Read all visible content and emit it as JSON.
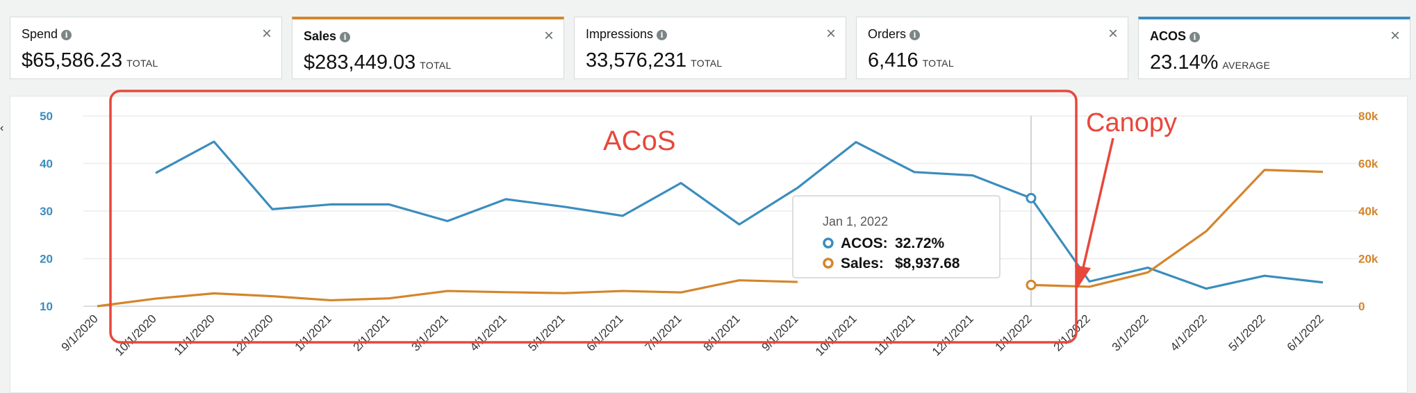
{
  "metrics": [
    {
      "label": "Spend",
      "value": "$65,586.23",
      "unit": "TOTAL",
      "selected": false,
      "accent": ""
    },
    {
      "label": "Sales",
      "value": "$283,449.03",
      "unit": "TOTAL",
      "selected": true,
      "accent": "#d4852b"
    },
    {
      "label": "Impressions",
      "value": "33,576,231",
      "unit": "TOTAL",
      "selected": false,
      "accent": ""
    },
    {
      "label": "Orders",
      "value": "6,416",
      "unit": "TOTAL",
      "selected": false,
      "accent": ""
    },
    {
      "label": "ACOS",
      "value": "23.14%",
      "unit": "AVERAGE",
      "selected": true,
      "accent": "#3b8dbd"
    }
  ],
  "icons": {
    "info": "info-icon",
    "close": "close-icon",
    "chevron": "chevron-left-icon"
  },
  "tooltip": {
    "date": "Jan 1, 2022",
    "rows": [
      {
        "label": "ACOS:",
        "value": "32.72%"
      },
      {
        "label": "Sales:",
        "value": "$8,937.68"
      }
    ]
  },
  "annotations": {
    "box_label": "ACoS",
    "arrow_label": "Canopy",
    "color": "#e8473b"
  },
  "colors": {
    "acos": "#3b8dbd",
    "sales": "#d4852b",
    "annotation": "#e8473b"
  },
  "chart_data": {
    "type": "line",
    "x": [
      "9/1/2020",
      "10/1/2020",
      "11/1/2020",
      "12/1/2020",
      "1/1/2021",
      "2/1/2021",
      "3/1/2021",
      "4/1/2021",
      "5/1/2021",
      "6/1/2021",
      "7/1/2021",
      "8/1/2021",
      "9/1/2021",
      "10/1/2021",
      "11/1/2021",
      "12/1/2021",
      "1/1/2022",
      "2/1/2022",
      "3/1/2022",
      "4/1/2022",
      "5/1/2022",
      "6/1/2022"
    ],
    "series": [
      {
        "name": "ACOS",
        "axis": "left",
        "color": "#3b8dbd",
        "values": [
          null,
          38,
          44.6,
          30.4,
          31.4,
          31.4,
          27.9,
          32.5,
          30.9,
          29.0,
          35.9,
          27.2,
          34.9,
          44.5,
          38.2,
          37.5,
          32.72,
          15.2,
          18.1,
          13.7,
          16.4,
          15.0
        ]
      },
      {
        "name": "Sales",
        "axis": "right",
        "color": "#d4852b",
        "values": [
          0,
          3200,
          5400,
          4200,
          2500,
          3300,
          6400,
          5900,
          5500,
          6400,
          5800,
          10900,
          10200,
          null,
          null,
          null,
          8937.68,
          8200,
          14200,
          31500,
          57300,
          56500
        ]
      }
    ],
    "yleft": {
      "ticks": [
        10,
        20,
        30,
        40,
        50
      ],
      "range": [
        10,
        50
      ]
    },
    "yright": {
      "ticks": [
        "0",
        "20k",
        "40k",
        "60k",
        "80k"
      ],
      "range": [
        0,
        80000
      ]
    },
    "highlight_index": 16,
    "grid": true
  }
}
